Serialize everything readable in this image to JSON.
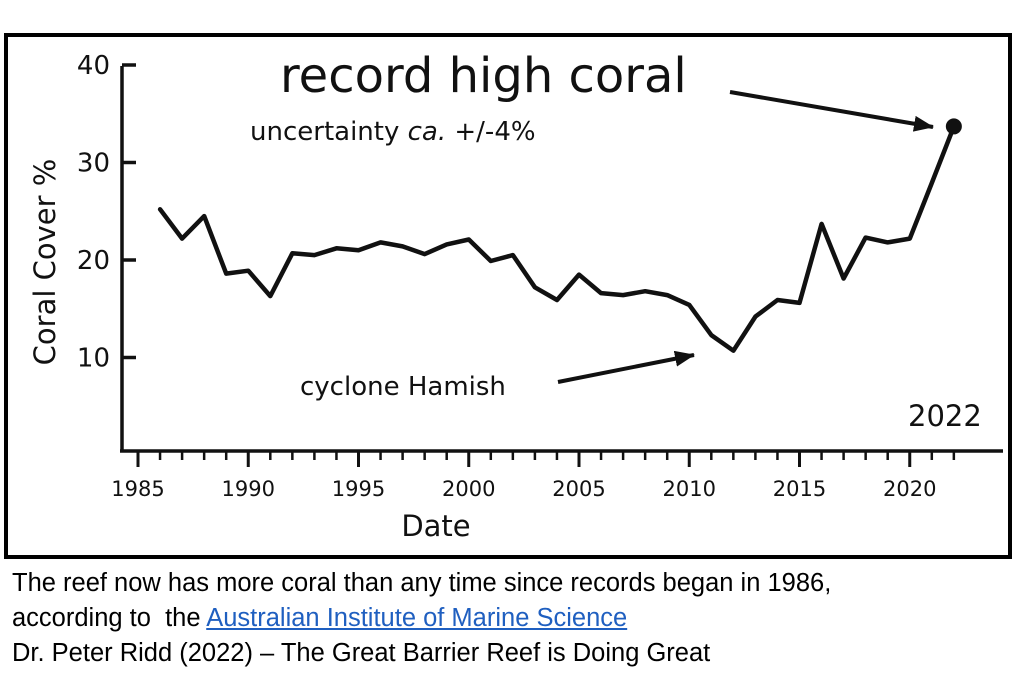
{
  "chart_data": {
    "type": "line",
    "xlabel": "Date",
    "ylabel": "Coral Cover %",
    "xlim": [
      1984,
      2024.5
    ],
    "ylim": [
      0,
      40
    ],
    "xticks": [
      1985,
      1990,
      1995,
      2000,
      2005,
      2010,
      2015,
      2020
    ],
    "yticks": [
      10,
      20,
      30,
      40
    ],
    "grid": false,
    "series": [
      {
        "x": [
          1986,
          1987,
          1988,
          1989,
          1990,
          1991,
          1992,
          1993,
          1994,
          1995,
          1996,
          1997,
          1998,
          1999,
          2000,
          2001,
          2002,
          2003,
          2004,
          2005,
          2006,
          2007,
          2008,
          2009,
          2010,
          2011,
          2012,
          2013,
          2014,
          2015,
          2016,
          2017,
          2018,
          2019,
          2020,
          2021,
          2022
        ],
        "values": [
          25.2,
          22.2,
          24.5,
          18.6,
          18.9,
          16.3,
          20.7,
          20.5,
          21.2,
          21.0,
          21.8,
          21.4,
          20.6,
          21.6,
          22.1,
          19.9,
          20.5,
          17.2,
          15.9,
          18.5,
          16.6,
          16.4,
          16.8,
          16.4,
          15.4,
          12.3,
          10.7,
          14.2,
          15.9,
          15.6,
          23.7,
          18.1,
          22.3,
          21.8,
          22.2,
          27.9,
          33.7
        ]
      }
    ],
    "annotations": {
      "title": "record high coral",
      "uncertainty_prefix": "uncertainty ",
      "uncertainty_italic": "ca.",
      "uncertainty_suffix": " +/-4%",
      "cyclone": "cyclone Hamish",
      "year_label": "2022"
    }
  },
  "caption": {
    "line1": "The reef now has more coral than any time since records began in 1986,",
    "line2_prefix": "according to  the ",
    "line2_link": "Australian Institute of Marine Science",
    "line3": "Dr. Peter Ridd (2022) – The Great Barrier Reef is Doing Great"
  },
  "colors": {
    "line": "#111111",
    "link": "#1f5fc0"
  }
}
